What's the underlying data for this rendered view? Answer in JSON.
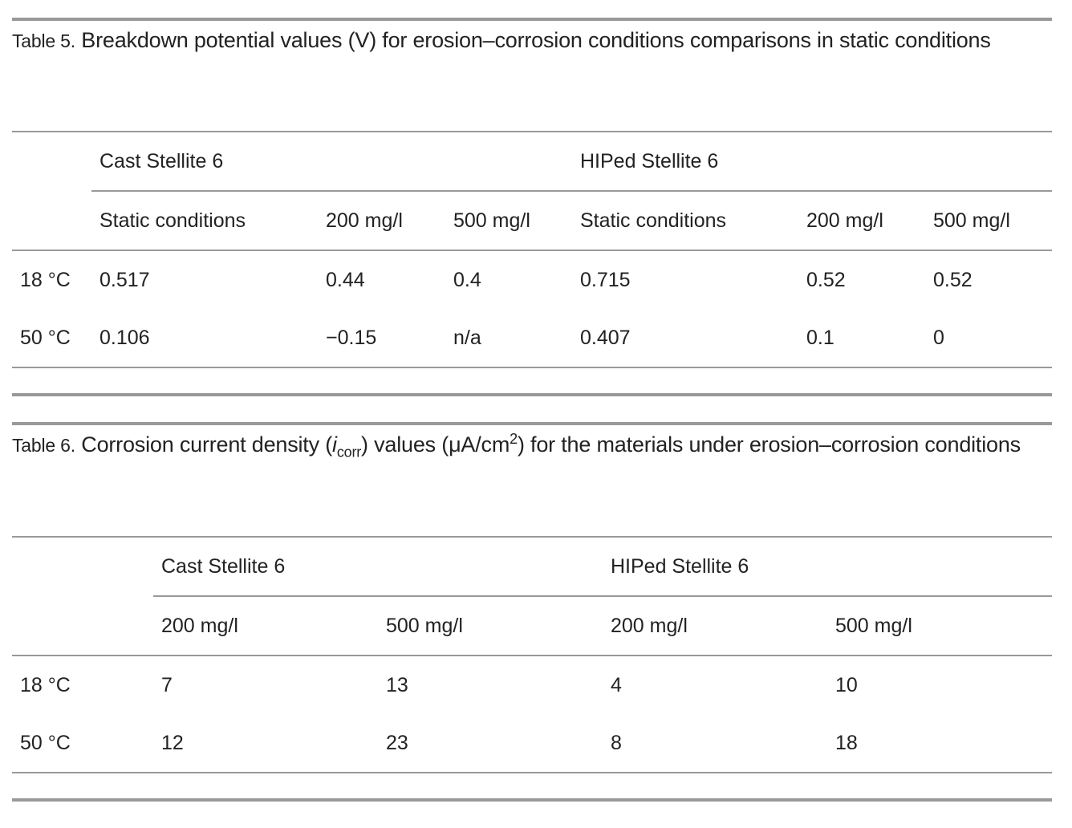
{
  "table5": {
    "label": "Table 5.",
    "caption": "Breakdown potential values (V) for erosion–corrosion conditions comparisons in static conditions",
    "groups": [
      "Cast Stellite 6",
      "HIPed Stellite 6"
    ],
    "subheaders": [
      "Static conditions",
      "200 mg/l",
      "500 mg/l",
      "Static conditions",
      "200 mg/l",
      "500 mg/l"
    ],
    "rows": [
      {
        "label": "18 °C",
        "values": [
          "0.517",
          "0.44",
          "0.4",
          "0.715",
          "0.52",
          "0.52"
        ]
      },
      {
        "label": "50 °C",
        "values": [
          "0.106",
          "−0.15",
          "n/a",
          "0.407",
          "0.1",
          "0"
        ]
      }
    ]
  },
  "table6": {
    "label": "Table 6.",
    "caption_pre": "Corrosion current density (",
    "caption_symbol": "i",
    "caption_sub": "corr",
    "caption_mid": ") values (μA/cm",
    "caption_sup": "2",
    "caption_post": ") for the materials under erosion–corrosion conditions",
    "groups": [
      "Cast Stellite 6",
      "HIPed Stellite 6"
    ],
    "subheaders": [
      "200 mg/l",
      "500 mg/l",
      "200 mg/l",
      "500 mg/l"
    ],
    "rows": [
      {
        "label": "18 °C",
        "values": [
          "7",
          "13",
          "4",
          "10"
        ]
      },
      {
        "label": "50 °C",
        "values": [
          "12",
          "23",
          "8",
          "18"
        ]
      }
    ]
  }
}
